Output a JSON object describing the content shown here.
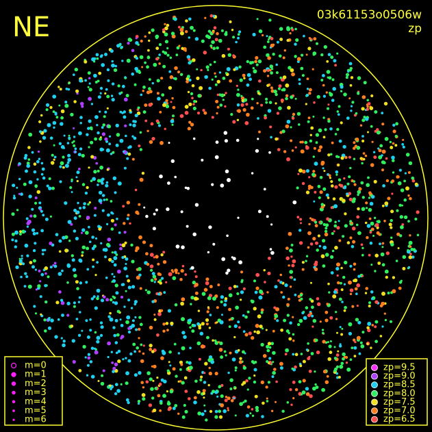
{
  "header": {
    "title": "NE",
    "id": "03k61153o0506w",
    "subtitle": "zp"
  },
  "legend_m": {
    "items": [
      {
        "label": "m=0"
      },
      {
        "label": "m=1"
      },
      {
        "label": "m=2"
      },
      {
        "label": "m=3"
      },
      {
        "label": "m=4"
      },
      {
        "label": "m=5"
      },
      {
        "label": "m=6"
      }
    ],
    "color": "#ff20ff"
  },
  "legend_zp": {
    "items": [
      {
        "label": "zp=9.5",
        "color": "#ff30ff"
      },
      {
        "label": "zp=9.0",
        "color": "#b040ff"
      },
      {
        "label": "zp=8.5",
        "color": "#20d0f0"
      },
      {
        "label": "zp=8.0",
        "color": "#30f060"
      },
      {
        "label": "zp=7.5",
        "color": "#f0e020"
      },
      {
        "label": "zp=7.0",
        "color": "#ff8020"
      },
      {
        "label": "zp=6.5",
        "color": "#ff5050"
      }
    ]
  }
}
